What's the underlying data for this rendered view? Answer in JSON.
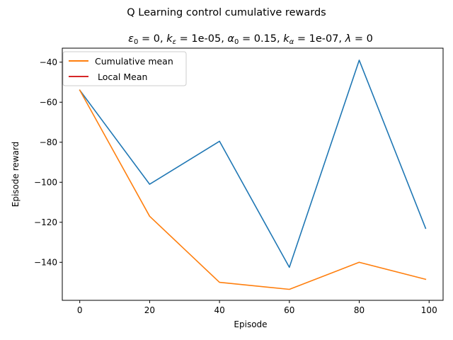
{
  "chart_data": {
    "type": "line",
    "suptitle": "Q Learning control cumulative rewards",
    "subtitle": {
      "eps_sym": "ε",
      "eps_sub": "0",
      "eps_val": " = 0, ",
      "k_sym": "k",
      "k_sub": "ε",
      "k_val": " = 1e-05, ",
      "alpha_sym": "α",
      "alpha_sub": "0",
      "alpha_val": " = 0.15, ",
      "ka_sym": "k",
      "ka_sub": "α",
      "ka_val": " = 1e-07, ",
      "lambda_sym": "λ",
      "lambda_val": " = 0"
    },
    "xlabel": "Episode",
    "ylabel": "Episode reward",
    "xlim": [
      -5,
      104
    ],
    "ylim": [
      -159,
      -33
    ],
    "x_ticks": [
      0,
      20,
      40,
      60,
      80,
      100
    ],
    "x_tick_labels": [
      "0",
      "20",
      "40",
      "60",
      "80",
      "100"
    ],
    "y_ticks": [
      -140,
      -120,
      -100,
      -80,
      -60,
      -40
    ],
    "y_tick_labels": [
      "−140",
      "−120",
      "−100",
      "−80",
      "−60",
      "−40"
    ],
    "grid": false,
    "legend_position": "top-left",
    "series": [
      {
        "key": "episode",
        "color": "#1f77b4",
        "x": [
          0,
          20,
          40,
          60,
          80,
          99
        ],
        "y": [
          -54,
          -101,
          -79.5,
          -142.5,
          -39,
          -123
        ]
      },
      {
        "key": "cumulative",
        "name": "Cumulative mean",
        "color": "#ff7f0e",
        "x": [
          0,
          20,
          40,
          60,
          80,
          99
        ],
        "y": [
          -54,
          -117,
          -150,
          -153.5,
          -140,
          -148.5
        ]
      },
      {
        "key": "local",
        "name": " Local Mean",
        "color": "#d62728",
        "x": [],
        "y": []
      }
    ],
    "legend": [
      {
        "label": "Cumulative mean",
        "color": "#ff7f0e"
      },
      {
        "label": " Local Mean",
        "color": "#d62728"
      }
    ]
  }
}
